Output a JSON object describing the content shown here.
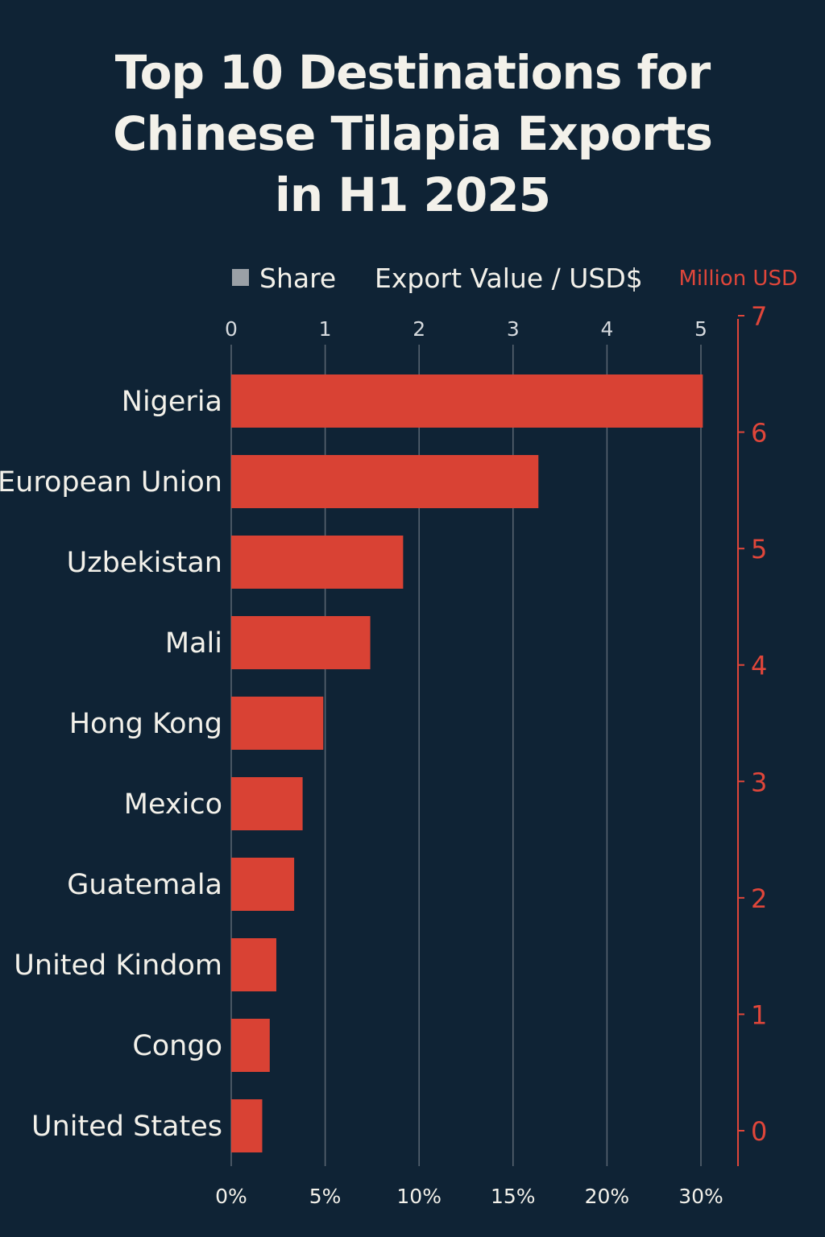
{
  "chart_data": {
    "type": "bar",
    "orientation": "horizontal",
    "title": "Top 10 Destinations for\nChinese Tilapia Exports\nin H1 2025",
    "legend": {
      "items": [
        "Share",
        "Export Value / USD$"
      ],
      "placement": "top"
    },
    "right_axis_label": "Million USD",
    "categories": [
      "Nigeria",
      "European Union",
      "Uzbekistan",
      "Mali",
      "Hong Kong",
      "Mexico",
      "Guatemala",
      "United Kindom",
      "Congo",
      "United States"
    ],
    "series": [
      {
        "name": "Export Value / USD$",
        "values": [
          5.02,
          3.27,
          1.83,
          1.48,
          0.98,
          0.76,
          0.67,
          0.48,
          0.41,
          0.33
        ]
      }
    ],
    "x_top_axis": {
      "ticks": [
        "0",
        "1",
        "2",
        "3",
        "4",
        "5"
      ],
      "range": [
        0,
        5
      ]
    },
    "x_bottom_axis": {
      "ticks": [
        "0%",
        "5%",
        "10%",
        "15%",
        "20%",
        "30%"
      ]
    },
    "y_right_axis": {
      "ticks": [
        "0",
        "1",
        "2",
        "3",
        "4",
        "5",
        "6",
        "7"
      ],
      "range": [
        0,
        7
      ]
    },
    "grid": true,
    "colors": {
      "bar": "#d94234",
      "accent": "#e0463a",
      "background": "#0f2335",
      "grid": "#5b6773",
      "legend_marker": "#9aa0a6"
    }
  }
}
